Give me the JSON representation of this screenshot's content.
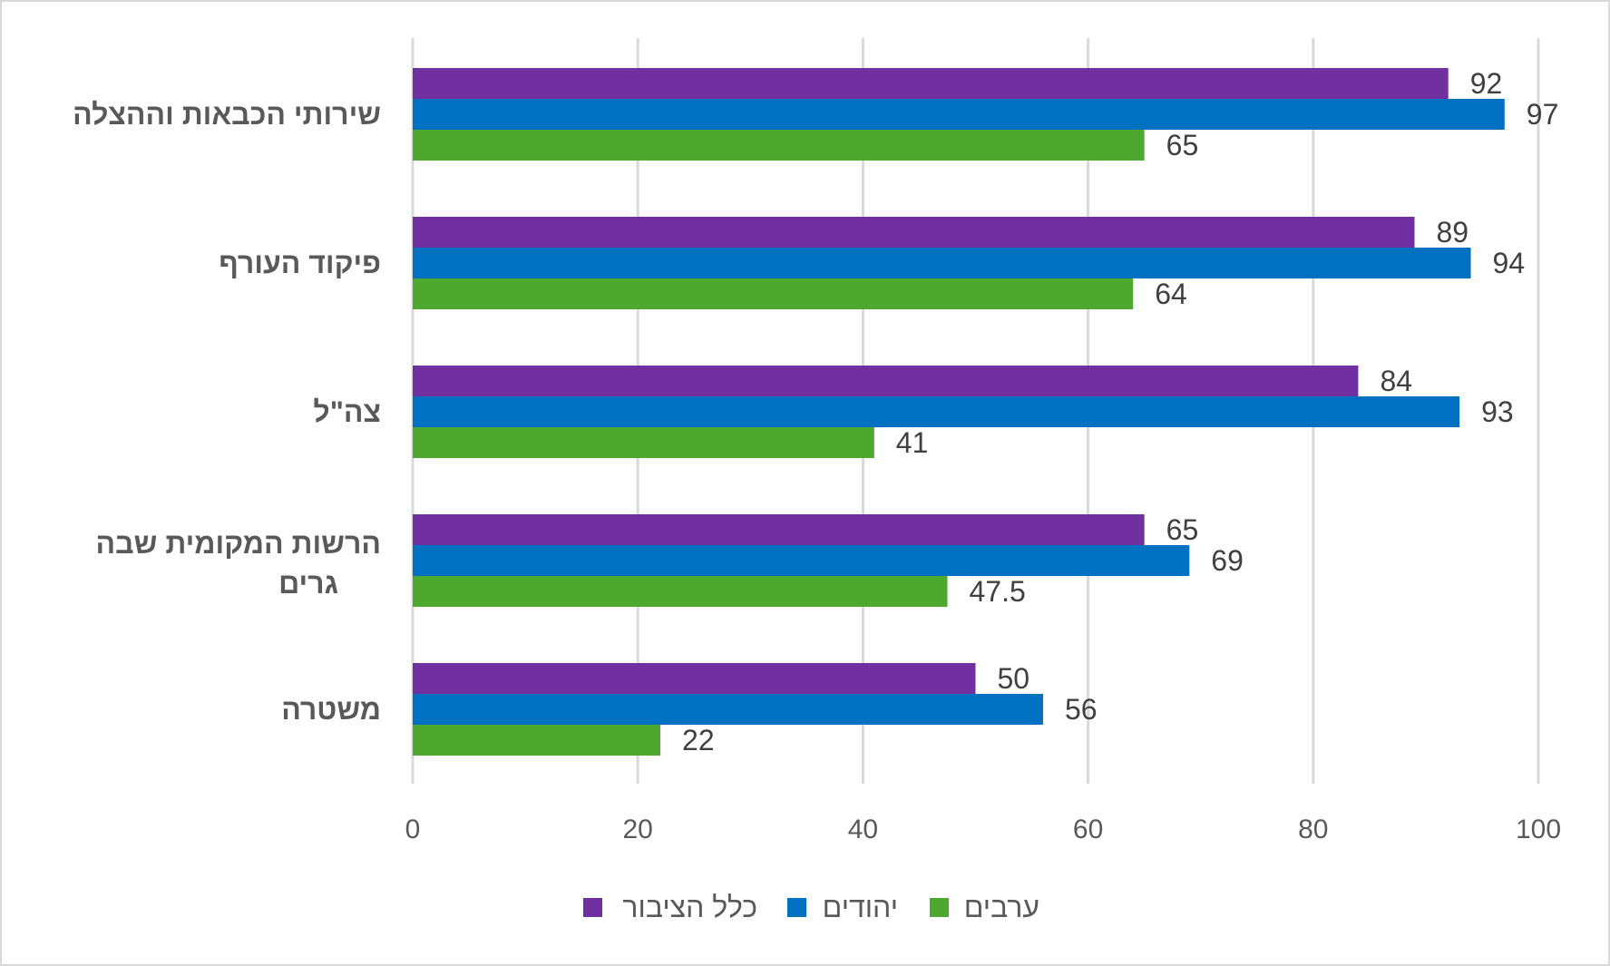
{
  "chart_data": {
    "type": "bar",
    "orientation": "horizontal",
    "categories": [
      "שירותי הכבאות וההצלה",
      "פיקוד העורף",
      "צה\"ל",
      "הרשות המקומית שבה גרים",
      "משטרה"
    ],
    "series": [
      {
        "name": "כלל הציבור",
        "color": "#7030a0",
        "values": [
          92,
          89,
          84,
          65,
          50
        ]
      },
      {
        "name": "יהודים",
        "color": "#0070c0",
        "values": [
          97,
          94,
          93,
          69,
          56
        ]
      },
      {
        "name": "ערבים",
        "color": "#4ea72e",
        "values": [
          65,
          64,
          41,
          47.5,
          22
        ]
      }
    ],
    "xlim": [
      0,
      100
    ],
    "x_ticks": [
      0,
      20,
      40,
      60,
      80,
      100
    ],
    "grid": true,
    "legend_position": "bottom",
    "title": "",
    "xlabel": "",
    "ylabel": ""
  }
}
